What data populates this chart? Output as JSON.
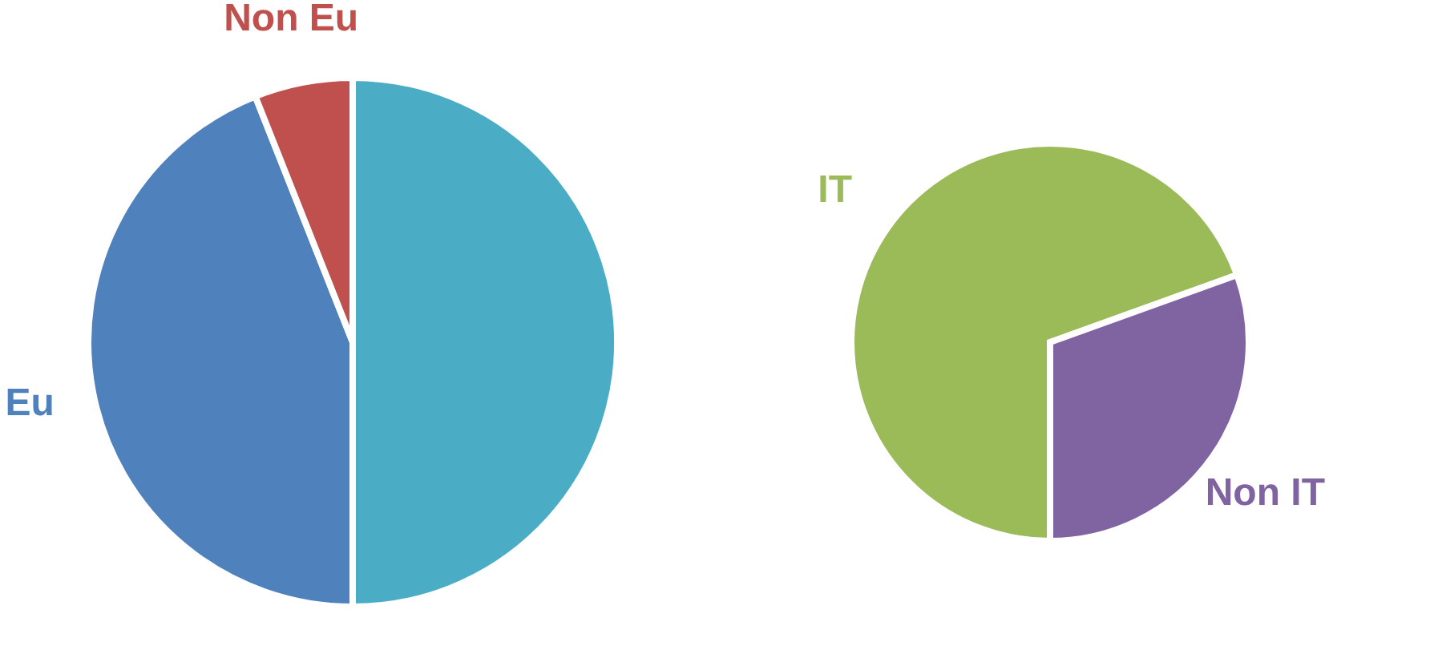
{
  "chart_data": [
    {
      "type": "pie",
      "categories": [
        null,
        "Eu",
        "Non Eu"
      ],
      "values": [
        50,
        44,
        6
      ],
      "colors": [
        "#4bacc6",
        "#4f81bd",
        "#c0504d"
      ],
      "legend": false
    },
    {
      "type": "pie",
      "categories": [
        "IT",
        "Non IT"
      ],
      "values": [
        69.5,
        30.5
      ],
      "colors": [
        "#9bbb59",
        "#8064a2"
      ],
      "legend": false
    }
  ]
}
